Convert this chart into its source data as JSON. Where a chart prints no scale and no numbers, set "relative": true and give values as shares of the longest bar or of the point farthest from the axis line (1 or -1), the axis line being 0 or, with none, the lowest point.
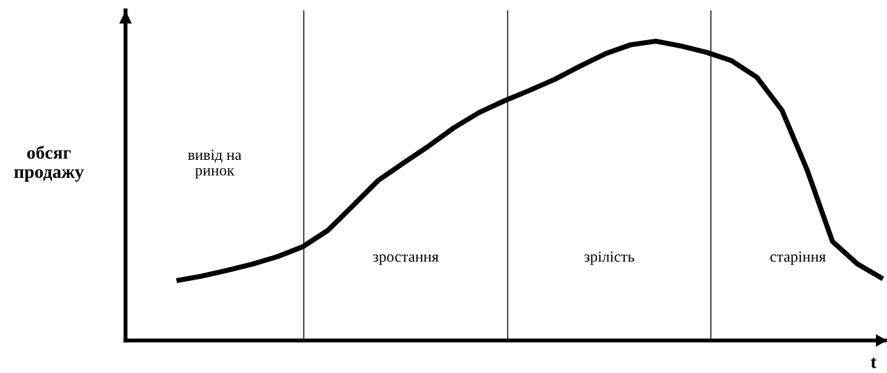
{
  "chart_data": {
    "type": "line",
    "relative": true,
    "ylabel": "обсяг продажу",
    "xlabel": "t",
    "categories": [
      null,
      null,
      null,
      null,
      null,
      null,
      null,
      null,
      null,
      null,
      null,
      null,
      null,
      null,
      null,
      null,
      null,
      null,
      null,
      null,
      null,
      null,
      null,
      null,
      null,
      null,
      null,
      null,
      null
    ],
    "series": [
      {
        "color": "#000000",
        "values": [
          0.2,
          0.215,
          0.234,
          0.255,
          0.28,
          0.313,
          0.368,
          0.451,
          0.535,
          0.593,
          0.65,
          0.711,
          0.762,
          0.801,
          0.836,
          0.873,
          0.917,
          0.958,
          0.988,
          1.0,
          0.984,
          0.963,
          0.935,
          0.88,
          0.769,
          0.569,
          0.331,
          0.255,
          0.206
        ]
      }
    ],
    "annotations": [
      "вивід на ринок",
      "зростання",
      "зрілість",
      "старіння"
    ],
    "grid": "x",
    "marker": "none",
    "line_style": "solid"
  }
}
